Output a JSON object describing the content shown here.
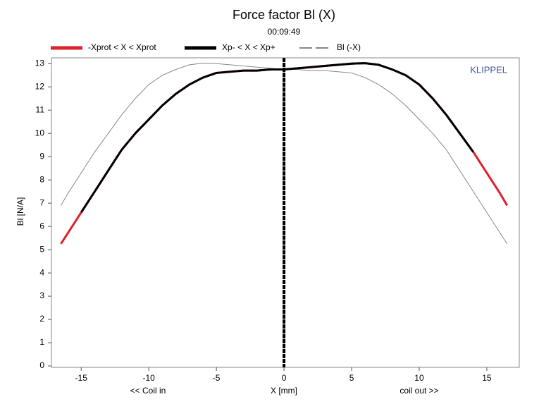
{
  "chart_data": {
    "type": "line",
    "title": "Force factor Bl (X)",
    "subtitle": "00:09:49",
    "x_label": "X [mm]",
    "x_label_left": "<< Coil in",
    "x_label_right": "coil out >>",
    "y_label": "Bl [N/A]",
    "watermark": "KLIPPEL",
    "x": [
      -16.5,
      -16,
      -15,
      -14,
      -13,
      -12,
      -11,
      -10,
      -9,
      -8,
      -7,
      -6,
      -5,
      -4,
      -3,
      -2,
      -1,
      0,
      1,
      2,
      3,
      4,
      5,
      6,
      7,
      8,
      9,
      10,
      11,
      12,
      13,
      14,
      15,
      16,
      16.5
    ],
    "series": [
      {
        "name": "-Xprot < X < Xprot",
        "color": "#e0202a",
        "width": 3,
        "values": [
          5.25,
          5.7,
          6.6,
          7.5,
          8.4,
          9.3,
          10.0,
          10.6,
          11.2,
          11.7,
          12.1,
          12.4,
          12.6,
          12.65,
          12.7,
          12.7,
          12.75,
          12.75,
          12.8,
          12.85,
          12.9,
          12.95,
          13.0,
          13.02,
          12.95,
          12.75,
          12.5,
          12.1,
          11.5,
          10.8,
          10.0,
          9.2,
          8.3,
          7.4,
          6.9
        ]
      },
      {
        "name": "Xp- < X < Xp+",
        "color": "#000000",
        "width": 3,
        "values": [
          null,
          null,
          6.6,
          7.5,
          8.4,
          9.3,
          10.0,
          10.6,
          11.2,
          11.7,
          12.1,
          12.4,
          12.6,
          12.65,
          12.7,
          12.7,
          12.75,
          12.75,
          12.8,
          12.85,
          12.9,
          12.95,
          13.0,
          13.02,
          12.95,
          12.75,
          12.5,
          12.1,
          11.5,
          10.8,
          10.0,
          9.2,
          null,
          null,
          null
        ]
      },
      {
        "name": "Bl (-X)",
        "color": "#888888",
        "width": 1,
        "dashed_legend": true,
        "values": [
          6.9,
          7.4,
          8.3,
          9.2,
          10.0,
          10.8,
          11.5,
          12.1,
          12.5,
          12.75,
          12.95,
          13.02,
          13.0,
          12.95,
          12.9,
          12.85,
          12.8,
          12.75,
          12.75,
          12.7,
          12.7,
          12.65,
          12.6,
          12.4,
          12.1,
          11.7,
          11.2,
          10.6,
          10.0,
          9.3,
          8.4,
          7.5,
          6.6,
          5.7,
          5.25
        ]
      }
    ],
    "marker_x": 0,
    "xlim": [
      -17.2,
      17.4
    ],
    "ylim": [
      -0.06,
      13.25
    ],
    "xticks": [
      -15,
      -10,
      -5,
      0,
      5,
      10,
      15
    ],
    "yticks": [
      0,
      1,
      2,
      3,
      4,
      5,
      6,
      7,
      8,
      9,
      10,
      11,
      12,
      13
    ]
  }
}
